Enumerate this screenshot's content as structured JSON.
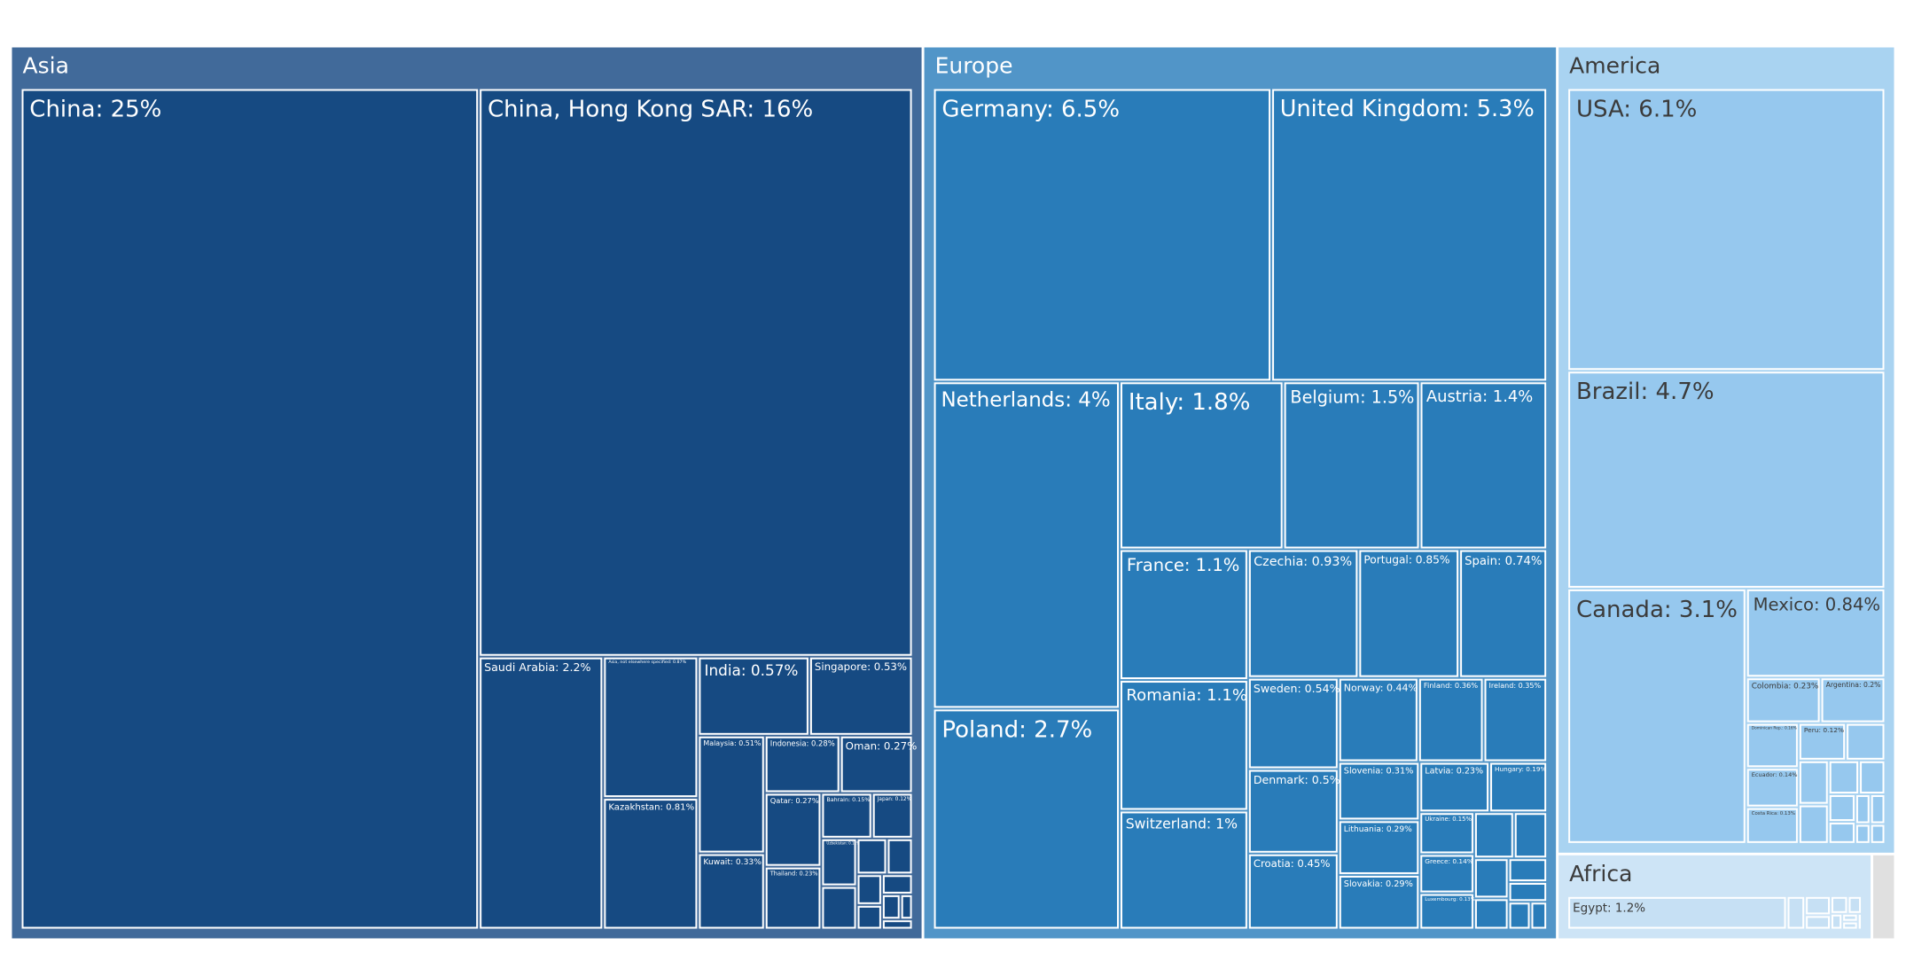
{
  "chart_data": {
    "type": "treemap",
    "value_unit": "%",
    "regions": [
      {
        "name": "Asia",
        "color": "#416a9a",
        "tile_color": "#164a82",
        "text_color": "#ffffff",
        "items": [
          {
            "label": "China: 25%",
            "value": 25
          },
          {
            "label": "China, Hong Kong SAR: 16%",
            "value": 16
          },
          {
            "label": "Saudi Arabia: 2.2%",
            "value": 2.2
          },
          {
            "label": "Asia, not elsewhere specified: 0.87%",
            "value": 0.87
          },
          {
            "label": "Kazakhstan: 0.81%",
            "value": 0.81
          },
          {
            "label": "India: 0.57%",
            "value": 0.57
          },
          {
            "label": "Singapore: 0.53%",
            "value": 0.53
          },
          {
            "label": "Malaysia: 0.51%",
            "value": 0.51
          },
          {
            "label": "Kuwait: 0.33%",
            "value": 0.33
          },
          {
            "label": "Indonesia: 0.28%",
            "value": 0.28
          },
          {
            "label": "Oman: 0.27%",
            "value": 0.27
          },
          {
            "label": "Qatar: 0.27%",
            "value": 0.27
          },
          {
            "label": "Thailand: 0.23%",
            "value": 0.23
          },
          {
            "label": "Bahrain: 0.15%",
            "value": 0.15
          },
          {
            "label": "Japan: 0.12%",
            "value": 0.12
          },
          {
            "label": "Uzbekistan: 0.11%",
            "value": 0.11
          },
          {
            "label": "",
            "value": 0.1
          },
          {
            "label": "",
            "value": 0.07
          },
          {
            "label": "",
            "value": 0.06
          },
          {
            "label": "",
            "value": 0.05
          },
          {
            "label": "",
            "value": 0.04
          },
          {
            "label": "",
            "value": 0.04
          },
          {
            "label": "",
            "value": 0.03
          },
          {
            "label": "",
            "value": 0.02
          },
          {
            "label": "",
            "value": 0.02
          }
        ]
      },
      {
        "name": "Europe",
        "color": "#5195c8",
        "tile_color": "#297cb9",
        "text_color": "#ffffff",
        "items": [
          {
            "label": "Germany: 6.5%",
            "value": 6.5
          },
          {
            "label": "United Kingdom: 5.3%",
            "value": 5.3
          },
          {
            "label": "Netherlands: 4%",
            "value": 4
          },
          {
            "label": "Poland: 2.7%",
            "value": 2.7
          },
          {
            "label": "Italy: 1.8%",
            "value": 1.8
          },
          {
            "label": "Belgium: 1.5%",
            "value": 1.5
          },
          {
            "label": "Austria: 1.4%",
            "value": 1.4
          },
          {
            "label": "France: 1.1%",
            "value": 1.1
          },
          {
            "label": "Romania: 1.1%",
            "value": 1.1
          },
          {
            "label": "Switzerland: 1%",
            "value": 1
          },
          {
            "label": "Czechia: 0.93%",
            "value": 0.93
          },
          {
            "label": "Portugal: 0.85%",
            "value": 0.85
          },
          {
            "label": "Spain: 0.74%",
            "value": 0.74
          },
          {
            "label": "Sweden: 0.54%",
            "value": 0.54
          },
          {
            "label": "Denmark: 0.5%",
            "value": 0.5
          },
          {
            "label": "Croatia: 0.45%",
            "value": 0.45
          },
          {
            "label": "Norway: 0.44%",
            "value": 0.44
          },
          {
            "label": "Finland: 0.36%",
            "value": 0.36
          },
          {
            "label": "Ireland: 0.35%",
            "value": 0.35
          },
          {
            "label": "Slovenia: 0.31%",
            "value": 0.31
          },
          {
            "label": "Lithuania: 0.29%",
            "value": 0.29
          },
          {
            "label": "Slovakia: 0.29%",
            "value": 0.29
          },
          {
            "label": "Latvia: 0.23%",
            "value": 0.23
          },
          {
            "label": "Hungary: 0.19%",
            "value": 0.19
          },
          {
            "label": "Ukraine: 0.15%",
            "value": 0.15
          },
          {
            "label": "Greece: 0.14%",
            "value": 0.14
          },
          {
            "label": "Luxembourg: 0.13%",
            "value": 0.13
          },
          {
            "label": "",
            "value": 0.12
          },
          {
            "label": "",
            "value": 0.1
          },
          {
            "label": "",
            "value": 0.09
          },
          {
            "label": "",
            "value": 0.07
          },
          {
            "label": "",
            "value": 0.06
          },
          {
            "label": "",
            "value": 0.05
          },
          {
            "label": "",
            "value": 0.04
          },
          {
            "label": "",
            "value": 0.03
          }
        ]
      },
      {
        "name": "America",
        "color": "#a9d3f1",
        "tile_color": "#96c8ee",
        "text_color": "#3b3b3b",
        "items": [
          {
            "label": "USA: 6.1%",
            "value": 6.1
          },
          {
            "label": "Brazil: 4.7%",
            "value": 4.7
          },
          {
            "label": "Canada: 3.1%",
            "value": 3.1
          },
          {
            "label": "Mexico: 0.84%",
            "value": 0.84
          },
          {
            "label": "Colombia: 0.23%",
            "value": 0.23
          },
          {
            "label": "Argentina: 0.2%",
            "value": 0.2
          },
          {
            "label": "Dominican Rep.: 0.16%",
            "value": 0.16
          },
          {
            "label": "Ecuador: 0.14%",
            "value": 0.14
          },
          {
            "label": "Costa Rica: 0.13%",
            "value": 0.13
          },
          {
            "label": "Peru: 0.12%",
            "value": 0.12
          },
          {
            "label": "",
            "value": 0.1
          },
          {
            "label": "",
            "value": 0.09
          },
          {
            "label": "",
            "value": 0.08
          },
          {
            "label": "",
            "value": 0.07
          },
          {
            "label": "",
            "value": 0.06
          },
          {
            "label": "",
            "value": 0.05
          },
          {
            "label": "",
            "value": 0.04
          },
          {
            "label": "",
            "value": 0.03
          },
          {
            "label": "",
            "value": 0.03
          },
          {
            "label": "",
            "value": 0.02
          },
          {
            "label": "",
            "value": 0.02
          }
        ]
      },
      {
        "name": "Africa",
        "color": "#cde4f6",
        "tile_color": "#c6e0f4",
        "text_color": "#3b3b3b",
        "items": [
          {
            "label": "Egypt: 1.2%",
            "value": 1.2
          },
          {
            "label": "",
            "value": 0.1
          },
          {
            "label": "",
            "value": 0.08
          },
          {
            "label": "",
            "value": 0.06
          },
          {
            "label": "",
            "value": 0.05
          },
          {
            "label": "",
            "value": 0.04
          },
          {
            "label": "",
            "value": 0.03
          },
          {
            "label": "",
            "value": 0.02
          },
          {
            "label": "",
            "value": 0.02
          },
          {
            "label": "",
            "value": 0.01
          }
        ]
      },
      {
        "name": "",
        "color": "#e0e0e0",
        "tile_color": "#e0e0e0",
        "text_color": "#3b3b3b",
        "items": [
          {
            "label": "",
            "value": 0.12
          }
        ]
      }
    ]
  }
}
